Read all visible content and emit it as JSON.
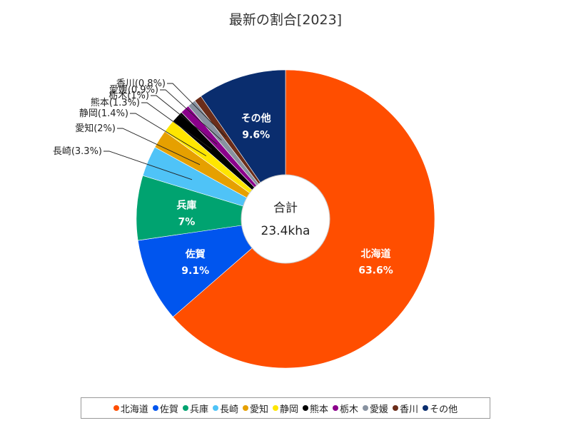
{
  "chart_data": {
    "type": "pie",
    "style": "donut",
    "title": "最新の割合[2023]",
    "center": {
      "label": "合計",
      "total": "23.4kha"
    },
    "categories": [
      "北海道",
      "佐賀",
      "兵庫",
      "長崎",
      "愛知",
      "静岡",
      "熊本",
      "栃木",
      "愛媛",
      "香川",
      "その他"
    ],
    "values": [
      63.6,
      9.1,
      7,
      3.3,
      2,
      1.4,
      1.3,
      1,
      0.9,
      0.8,
      9.6
    ],
    "unit": "%",
    "slices": [
      {
        "name": "北海道",
        "value": 63.6,
        "display": "63.6%",
        "color": "#ff4e00",
        "label_mode": "inside"
      },
      {
        "name": "佐賀",
        "value": 9.1,
        "display": "9.1%",
        "color": "#0055ee",
        "label_mode": "inside"
      },
      {
        "name": "兵庫",
        "value": 7,
        "display": "7%",
        "color": "#00a370",
        "label_mode": "inside"
      },
      {
        "name": "長崎",
        "value": 3.3,
        "display": "3.3%",
        "color": "#4fc3f7",
        "label_mode": "callout"
      },
      {
        "name": "愛知",
        "value": 2,
        "display": "2%",
        "color": "#e6a000",
        "label_mode": "callout"
      },
      {
        "name": "静岡",
        "value": 1.4,
        "display": "1.4%",
        "color": "#ffe600",
        "label_mode": "callout"
      },
      {
        "name": "熊本",
        "value": 1.3,
        "display": "1.3%",
        "color": "#000000",
        "label_mode": "callout"
      },
      {
        "name": "栃木",
        "value": 1,
        "display": "1%",
        "color": "#8b008b",
        "label_mode": "callout"
      },
      {
        "name": "愛媛",
        "value": 0.9,
        "display": "0.9%",
        "color": "#8892a0",
        "label_mode": "callout"
      },
      {
        "name": "香川",
        "value": 0.8,
        "display": "0.8%",
        "color": "#6b2d1a",
        "label_mode": "callout"
      },
      {
        "name": "その他",
        "value": 9.6,
        "display": "9.6%",
        "color": "#0a2d6e",
        "label_mode": "inside"
      }
    ],
    "legend_position": "bottom"
  }
}
